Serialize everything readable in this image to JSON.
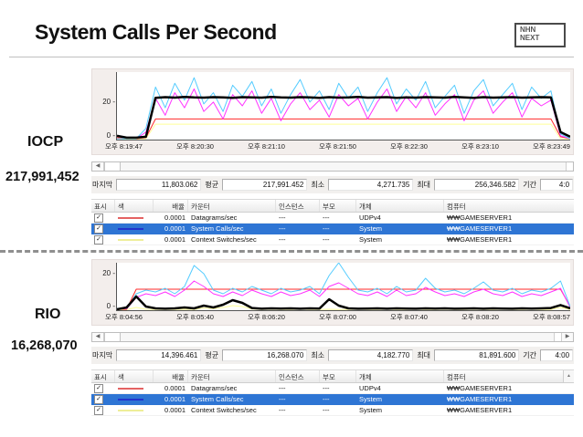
{
  "slide": {
    "title": "System Calls Per Second",
    "logo": {
      "line1": "NHN",
      "line2": "NEXT"
    }
  },
  "colors": {
    "accent_selection": "#2e75d4",
    "swatch_red": "#e46262",
    "swatch_blue": "#2233cc",
    "swatch_yellow": "#eeee99"
  },
  "sections": [
    {
      "label": "IOCP",
      "value": "217,991,452",
      "stats": {
        "last_label": "마지막",
        "last": "11,803.062",
        "avg_label": "평균",
        "avg": "217,991.452",
        "min_label": "최소",
        "min": "4,271.735",
        "max_label": "최대",
        "max": "256,346.582",
        "dur_label": "기간",
        "dur": "4:0"
      }
    },
    {
      "label": "RIO",
      "value": "16,268,070",
      "stats": {
        "last_label": "마지막",
        "last": "14,396.461",
        "avg_label": "평균",
        "avg": "16,268.070",
        "min_label": "최소",
        "min": "4,182.770",
        "max_label": "최대",
        "max": "81,891.600",
        "dur_label": "기간",
        "dur": "4:00"
      }
    }
  ],
  "counters": {
    "headers": [
      "표시",
      "색",
      "배율",
      "카운터",
      "인스턴스",
      "부모",
      "개체",
      "컴퓨터"
    ],
    "rows": [
      {
        "checked": "✓",
        "color": "#e46262",
        "scale": "0.0001",
        "counter": "Datagrams/sec",
        "instance": "---",
        "parent": "---",
        "object": "UDPv4",
        "computer": "₩₩GAMESERVER1"
      },
      {
        "checked": "✓",
        "color": "#2233cc",
        "scale": "0.0001",
        "counter": "System Calls/sec",
        "instance": "---",
        "parent": "---",
        "object": "System",
        "computer": "₩₩GAMESERVER1"
      },
      {
        "checked": "✓",
        "color": "#eeee99",
        "scale": "0.0001",
        "counter": "Context Switches/sec",
        "instance": "---",
        "parent": "---",
        "object": "System",
        "computer": "₩₩GAMESERVER1"
      }
    ]
  },
  "chart_data": [
    {
      "type": "line",
      "title": "IOCP perfmon graph",
      "xlabel": "",
      "ylabel": "",
      "ylim": [
        0,
        36
      ],
      "yticks": [
        20,
        0
      ],
      "grid": false,
      "legend_position": "none",
      "x_labels": [
        "오후 8:19:47",
        "오후 8:20:30",
        "오후 8:21:10",
        "오후 8:21:50",
        "오후 8:22:30",
        "오후 8:23:10",
        "오후 8:23:49"
      ],
      "series": [
        {
          "name": "Context Switches/sec",
          "color": "#ffff99",
          "width": 1,
          "values": [
            0.5,
            0.3,
            0.3,
            0.5,
            8.2,
            8.2,
            8.2,
            8.2,
            8.2,
            8.2,
            8.2,
            8.2,
            8.2,
            8.2,
            8.2,
            8.2,
            8.2,
            8.2,
            8.2,
            8.2,
            8.2,
            8.2,
            8.2,
            8.2,
            8.2,
            8.2,
            8.2,
            8.2,
            8.2,
            8.2,
            8.2,
            8.2,
            8.2,
            8.2,
            8.2,
            8.2,
            8.2,
            8.2,
            8.2,
            8.2,
            8.2,
            8.2,
            8.2,
            8.2,
            8.2,
            8.2,
            0.5,
            0.3
          ]
        },
        {
          "name": "Datagrams/sec",
          "color": "#ff2a2a",
          "width": 1,
          "values": [
            1,
            0.5,
            0.5,
            1,
            11,
            11,
            11,
            11,
            11,
            11,
            11,
            11,
            11,
            11,
            11,
            11,
            11,
            11,
            11,
            11,
            11,
            11,
            11,
            11,
            11,
            11,
            11,
            11,
            11,
            11,
            11,
            11,
            11,
            11,
            11,
            11,
            11,
            11,
            11,
            11,
            11,
            11,
            11,
            11,
            11,
            11,
            1.5,
            0.5
          ]
        },
        {
          "color": "#ff33ff",
          "width": 1,
          "values": [
            0.5,
            0.5,
            0.5,
            4,
            22,
            13,
            25,
            17,
            27,
            15,
            20,
            11,
            24,
            18,
            26,
            14,
            22,
            10,
            19,
            25,
            16,
            21,
            12,
            24,
            18,
            22,
            11,
            20,
            27,
            15,
            23,
            17,
            25,
            13,
            19,
            24,
            10,
            21,
            26,
            14,
            20,
            25,
            12,
            22,
            18,
            21,
            2,
            0.5
          ]
        },
        {
          "color": "#55ccff",
          "width": 1,
          "values": [
            0.5,
            0.5,
            0.5,
            6,
            28,
            17,
            30,
            21,
            33,
            19,
            25,
            15,
            29,
            23,
            31,
            18,
            27,
            14,
            24,
            32,
            20,
            26,
            16,
            30,
            22,
            28,
            15,
            25,
            33,
            19,
            27,
            21,
            31,
            17,
            23,
            29,
            14,
            26,
            32,
            18,
            24,
            30,
            16,
            28,
            22,
            26,
            3,
            0.5
          ]
        },
        {
          "name": "System Calls/sec",
          "color": "#000000",
          "width": 2.5,
          "values": [
            2,
            1,
            1,
            1.5,
            22.3,
            22.6,
            22.4,
            22.7,
            22.5,
            22.4,
            22.6,
            22.5,
            22.3,
            22.6,
            22.5,
            22.4,
            22.7,
            22.5,
            22.4,
            22.6,
            22.5,
            22.3,
            22.6,
            22.4,
            22.5,
            22.7,
            22.4,
            22.5,
            22.6,
            22.3,
            22.5,
            22.4,
            22.6,
            22.5,
            22.4,
            22.7,
            22.5,
            22.3,
            22.6,
            22.4,
            22.5,
            22.6,
            22.4,
            22.5,
            22.6,
            22.5,
            4,
            1.5
          ]
        }
      ]
    },
    {
      "type": "line",
      "title": "RIO perfmon graph",
      "xlabel": "",
      "ylabel": "",
      "ylim": [
        0,
        26
      ],
      "yticks": [
        20,
        0
      ],
      "grid": false,
      "legend_position": "none",
      "x_labels": [
        "오후 8:04:56",
        "오후 8:05:40",
        "오후 8:06:20",
        "오후 8:07:00",
        "오후 8:07:40",
        "오후 8:08:20",
        "오후 8:08:57"
      ],
      "series": [
        {
          "name": "Context Switches/sec",
          "color": "#ffff99",
          "width": 1,
          "values": [
            0.3,
            0.3,
            1.5,
            0.5,
            0.4,
            0.4,
            0.4,
            0.5,
            0.4,
            1.2,
            0.8,
            1.5,
            2.5,
            2,
            0.6,
            0.4,
            0.5,
            0.4,
            0.4,
            0.5,
            0.4,
            0.4,
            0.5,
            0.4,
            0.4,
            0.5,
            0.4,
            0.4,
            0.5,
            0.4,
            0.4,
            0.5,
            0.4,
            0.4,
            0.5,
            0.4,
            0.4,
            0.5,
            0.4,
            0.4,
            0.5,
            0.4,
            0.4,
            0.5,
            0.4,
            0.4,
            1.5,
            0.4
          ]
        },
        {
          "name": "Datagrams/sec",
          "color": "#ff2a2a",
          "width": 1,
          "values": [
            0.5,
            0.5,
            11.5,
            11.5,
            11.5,
            11.5,
            11.5,
            11.5,
            11.5,
            11.5,
            11.5,
            11.5,
            11.5,
            11.5,
            11.5,
            11.5,
            11.5,
            11.5,
            11.5,
            11.5,
            11.5,
            11.5,
            11.5,
            11.5,
            11.5,
            11.5,
            11.5,
            11.5,
            11.5,
            11.5,
            11.5,
            11.5,
            11.5,
            11.5,
            11.5,
            11.5,
            11.5,
            11.5,
            11.5,
            11.5,
            11.5,
            11.5,
            11.5,
            11.5,
            11.5,
            11.5,
            11.5,
            2
          ]
        },
        {
          "color": "#ff33ff",
          "width": 1,
          "values": [
            0.8,
            0.8,
            7,
            9,
            8,
            10,
            7.5,
            11,
            16,
            13,
            9,
            7.5,
            10,
            8,
            11,
            9,
            7.5,
            10,
            8,
            9,
            11,
            7.5,
            13,
            15,
            12,
            9,
            8,
            10,
            7.5,
            11,
            8,
            9,
            12.5,
            10,
            8,
            9,
            7.5,
            10,
            11.5,
            9,
            8,
            10,
            7.5,
            9,
            8,
            10,
            12,
            1.5
          ]
        },
        {
          "color": "#55ccff",
          "width": 1,
          "values": [
            1,
            1,
            9,
            11,
            10,
            12,
            9,
            13,
            24.5,
            20,
            11,
            9,
            12,
            10,
            13,
            11,
            9,
            12,
            10,
            11,
            13,
            9,
            19,
            26,
            18,
            11,
            10,
            12,
            9,
            13,
            10,
            11,
            17.5,
            12,
            10,
            11,
            9,
            12,
            15.5,
            11,
            10,
            12,
            9,
            11,
            10,
            12,
            16,
            2
          ]
        },
        {
          "name": "System Calls/sec",
          "color": "#000000",
          "width": 2.5,
          "values": [
            0.5,
            1.5,
            7.5,
            2,
            1,
            0.8,
            1,
            1.5,
            1,
            2.5,
            1.5,
            3,
            5.5,
            4,
            1.2,
            0.8,
            1,
            0.9,
            1,
            0.8,
            1,
            0.9,
            6,
            2.5,
            1,
            0.8,
            0.9,
            1,
            0.8,
            1,
            0.9,
            0.8,
            1,
            0.9,
            1,
            0.8,
            0.9,
            1,
            0.8,
            1,
            0.9,
            0.8,
            1,
            0.9,
            1,
            1.2,
            2.8,
            1
          ]
        }
      ]
    }
  ],
  "scrollbar": {
    "left_arrow": "◀",
    "right_arrow": "▶",
    "up_arrow": "▲"
  }
}
